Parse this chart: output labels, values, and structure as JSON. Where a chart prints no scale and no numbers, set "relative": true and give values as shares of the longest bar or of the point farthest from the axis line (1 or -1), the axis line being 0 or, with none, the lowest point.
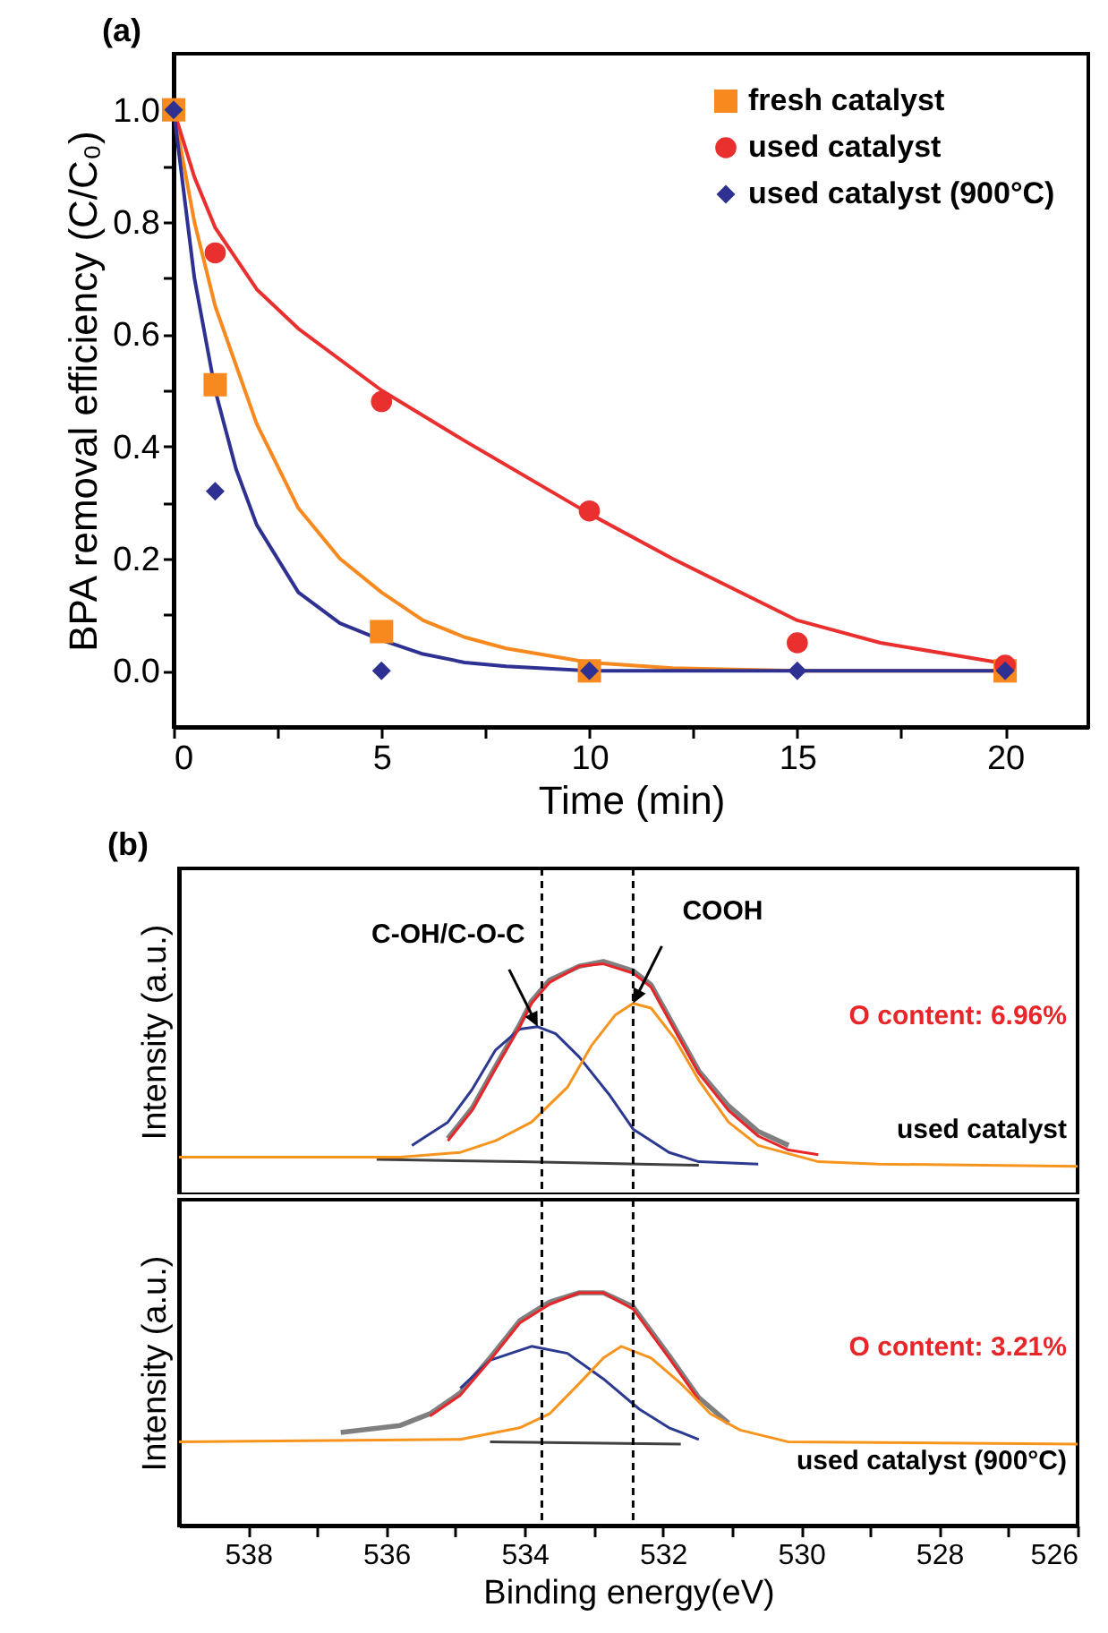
{
  "chart_data": [
    {
      "type": "scatter",
      "title": "(a)",
      "xlabel": "Time (min)",
      "ylabel": "BPA removal efficiency (C/C₀)",
      "xlim": [
        0,
        22
      ],
      "ylim": [
        -0.1,
        1.1
      ],
      "xticks": [
        0,
        {
          "value": 2.5,
          "label": null
        },
        5,
        {
          "value": 7.5,
          "label": null
        },
        10,
        {
          "value": 12.5,
          "label": null
        },
        15,
        {
          "value": 17.5,
          "label": null
        },
        20
      ],
      "yticks": [
        {
          "value": 0,
          "label": "0.0"
        },
        {
          "value": 0.1,
          "label": null
        },
        0.2,
        {
          "value": 0.3,
          "label": null
        },
        0.4,
        {
          "value": 0.5,
          "label": null
        },
        0.6,
        {
          "value": 0.7,
          "label": null
        },
        0.8,
        {
          "value": 0.9,
          "label": null
        },
        {
          "value": 1,
          "label": "1.0"
        }
      ],
      "legend": "top right",
      "series": [
        {
          "type": "line",
          "color": "#f7891f",
          "x": [
            0,
            0.5,
            1,
            2,
            3,
            4,
            5,
            6,
            7,
            8,
            10,
            12,
            15,
            20
          ],
          "values": [
            1.0,
            0.8,
            0.65,
            0.44,
            0.29,
            0.2,
            0.14,
            0.09,
            0.06,
            0.04,
            0.015,
            0.005,
            0.0,
            0.0
          ]
        },
        {
          "type": "line",
          "color": "#e9302f",
          "x": [
            0,
            0.5,
            1,
            2,
            3,
            5,
            7,
            10,
            12,
            15,
            17,
            20
          ],
          "values": [
            1.0,
            0.88,
            0.79,
            0.68,
            0.61,
            0.5,
            0.41,
            0.28,
            0.2,
            0.09,
            0.05,
            0.013
          ]
        },
        {
          "type": "line",
          "color": "#2e3192",
          "x": [
            0,
            0.5,
            1,
            1.5,
            2,
            3,
            4,
            5,
            6,
            7,
            8,
            10,
            20
          ],
          "values": [
            1.0,
            0.7,
            0.5,
            0.36,
            0.26,
            0.14,
            0.085,
            0.055,
            0.03,
            0.015,
            0.008,
            0.0,
            0.0
          ]
        },
        {
          "name": "fresh catalyst",
          "type": "scatter",
          "marker": "square",
          "color": "#f7891f",
          "x": [
            0,
            1,
            5,
            10,
            20
          ],
          "values": [
            1.0,
            0.51,
            0.07,
            0.0,
            0.0
          ]
        },
        {
          "name": "used catalyst",
          "type": "scatter",
          "marker": "circle",
          "color": "#e9302f",
          "x": [
            1,
            5,
            10,
            15,
            20
          ],
          "values": [
            0.745,
            0.48,
            0.285,
            0.05,
            0.01
          ]
        },
        {
          "name": "used catalyst (900°C)",
          "type": "scatter",
          "marker": "diamond",
          "color": "#2e3192",
          "x": [
            0,
            1,
            5,
            10,
            15,
            20
          ],
          "values": [
            1.0,
            0.32,
            0.0,
            0.0,
            0.0,
            0.0
          ]
        }
      ]
    },
    {
      "type": "line",
      "title": "(b)",
      "ylabel": "Intensity (a.u.)",
      "relative": true,
      "tick_labels": false,
      "xlim": [
        539,
        526
      ],
      "xticks": [
        538,
        {
          "value": 537,
          "label": null
        },
        536,
        {
          "value": 535,
          "label": null
        },
        534,
        {
          "value": 533,
          "label": null
        },
        532,
        {
          "value": 531,
          "label": null
        },
        530,
        {
          "value": 529,
          "label": null
        },
        528,
        {
          "value": 527,
          "label": null
        },
        526
      ],
      "ref_lines": [
        {
          "axis": "x",
          "value": 533.75,
          "line_style": "dashed",
          "color": "#000000"
        },
        {
          "axis": "x",
          "value": 532.43,
          "line_style": "dashed",
          "color": "#000000"
        }
      ],
      "annotations": [
        {
          "text": "C-OH/C-O-C",
          "x": 533.81,
          "y": 0.72
        },
        {
          "text": "COOH",
          "x": 532.43,
          "y": 0.82
        },
        "O content: 6.96%",
        "used catalyst"
      ],
      "series": [
        {
          "color": "#7f7f7f",
          "x": [
            535.11,
            534.76,
            534.42,
            534.07,
            533.9,
            533.64,
            533.21,
            532.86,
            532.43,
            532.17,
            531.91,
            531.48,
            531.05,
            530.62,
            530.18
          ],
          "values": [
            0.24,
            0.37,
            0.55,
            0.73,
            0.83,
            0.92,
            0.98,
            1.0,
            0.96,
            0.9,
            0.76,
            0.53,
            0.38,
            0.27,
            0.21
          ]
        },
        {
          "color": "#404040",
          "x": [
            536.14,
            534.07,
            532.34,
            531.48
          ],
          "values": [
            0.15,
            0.14,
            0.13,
            0.125
          ]
        },
        {
          "color": "#2b3990",
          "x": [
            535.63,
            535.11,
            534.76,
            534.42,
            534.07,
            533.81,
            533.55,
            533.21,
            532.78,
            532.43,
            531.91,
            531.48,
            530.62
          ],
          "values": [
            0.21,
            0.31,
            0.45,
            0.62,
            0.71,
            0.72,
            0.69,
            0.59,
            0.43,
            0.28,
            0.18,
            0.14,
            0.13
          ]
        },
        {
          "color": "#e8262a",
          "x": [
            535.11,
            534.76,
            534.42,
            534.07,
            533.9,
            533.64,
            533.21,
            532.86,
            532.43,
            532.17,
            531.91,
            531.48,
            531.05,
            530.62,
            530.18,
            529.75
          ],
          "values": [
            0.23,
            0.36,
            0.54,
            0.72,
            0.82,
            0.91,
            0.98,
            0.99,
            0.95,
            0.89,
            0.75,
            0.52,
            0.36,
            0.25,
            0.19,
            0.17
          ]
        },
        {
          "color": "#f7941d",
          "x": [
            539,
            535.8,
            534.93,
            534.42,
            533.9,
            533.38,
            533.03,
            532.69,
            532.43,
            532.17,
            531.83,
            531.48,
            531.05,
            530.62,
            529.75,
            528.89,
            526
          ],
          "values": [
            0.16,
            0.16,
            0.18,
            0.23,
            0.31,
            0.46,
            0.64,
            0.77,
            0.82,
            0.8,
            0.67,
            0.49,
            0.31,
            0.21,
            0.14,
            0.13,
            0.12
          ]
        }
      ]
    },
    {
      "type": "line",
      "xlabel": "Binding energy(eV)",
      "ylabel": "Intensity (a.u.)",
      "relative": true,
      "tick_labels": "x",
      "xlim": [
        539,
        526
      ],
      "xticks": [
        538,
        {
          "value": 537,
          "label": null
        },
        536,
        {
          "value": 535,
          "label": null
        },
        534,
        {
          "value": 533,
          "label": null
        },
        532,
        {
          "value": 531,
          "label": null
        },
        530,
        {
          "value": 529,
          "label": null
        },
        528,
        {
          "value": 527,
          "label": null
        },
        526
      ],
      "ref_lines": [
        {
          "axis": "x",
          "value": 533.75,
          "line_style": "dashed",
          "color": "#000000"
        },
        {
          "axis": "x",
          "value": 532.43,
          "line_style": "dashed",
          "color": "#000000"
        }
      ],
      "annotations": [
        "O content: 3.21%",
        "used catalyst (900°C)"
      ],
      "series": [
        {
          "color": "#7f7f7f",
          "x": [
            536.66,
            535.8,
            535.37,
            534.93,
            534.5,
            534.07,
            533.64,
            533.21,
            532.86,
            532.43,
            531.91,
            531.48,
            531.05
          ],
          "values": [
            0.4,
            0.43,
            0.48,
            0.57,
            0.72,
            0.88,
            0.96,
            1.0,
            1.0,
            0.94,
            0.73,
            0.55,
            0.44
          ]
        },
        {
          "color": "#404040",
          "x": [
            534.5,
            531.74
          ],
          "values": [
            0.36,
            0.35
          ]
        },
        {
          "color": "#2b3990",
          "x": [
            534.93,
            534.5,
            533.9,
            533.38,
            532.86,
            532.34,
            531.91,
            531.48
          ],
          "values": [
            0.59,
            0.71,
            0.77,
            0.74,
            0.63,
            0.5,
            0.42,
            0.37
          ]
        },
        {
          "color": "#e8262a",
          "x": [
            535.37,
            534.93,
            534.5,
            534.07,
            533.64,
            533.21,
            532.86,
            532.43,
            531.91,
            531.48
          ],
          "values": [
            0.47,
            0.56,
            0.71,
            0.87,
            0.95,
            1.0,
            1.0,
            0.93,
            0.72,
            0.54
          ]
        },
        {
          "color": "#f7941d",
          "x": [
            539,
            534.93,
            534.07,
            533.64,
            533.21,
            532.86,
            532.6,
            532.17,
            531.74,
            531.31,
            530.88,
            530.19,
            526
          ],
          "values": [
            0.36,
            0.37,
            0.42,
            0.48,
            0.61,
            0.72,
            0.77,
            0.72,
            0.61,
            0.48,
            0.41,
            0.36,
            0.35
          ]
        }
      ]
    }
  ]
}
